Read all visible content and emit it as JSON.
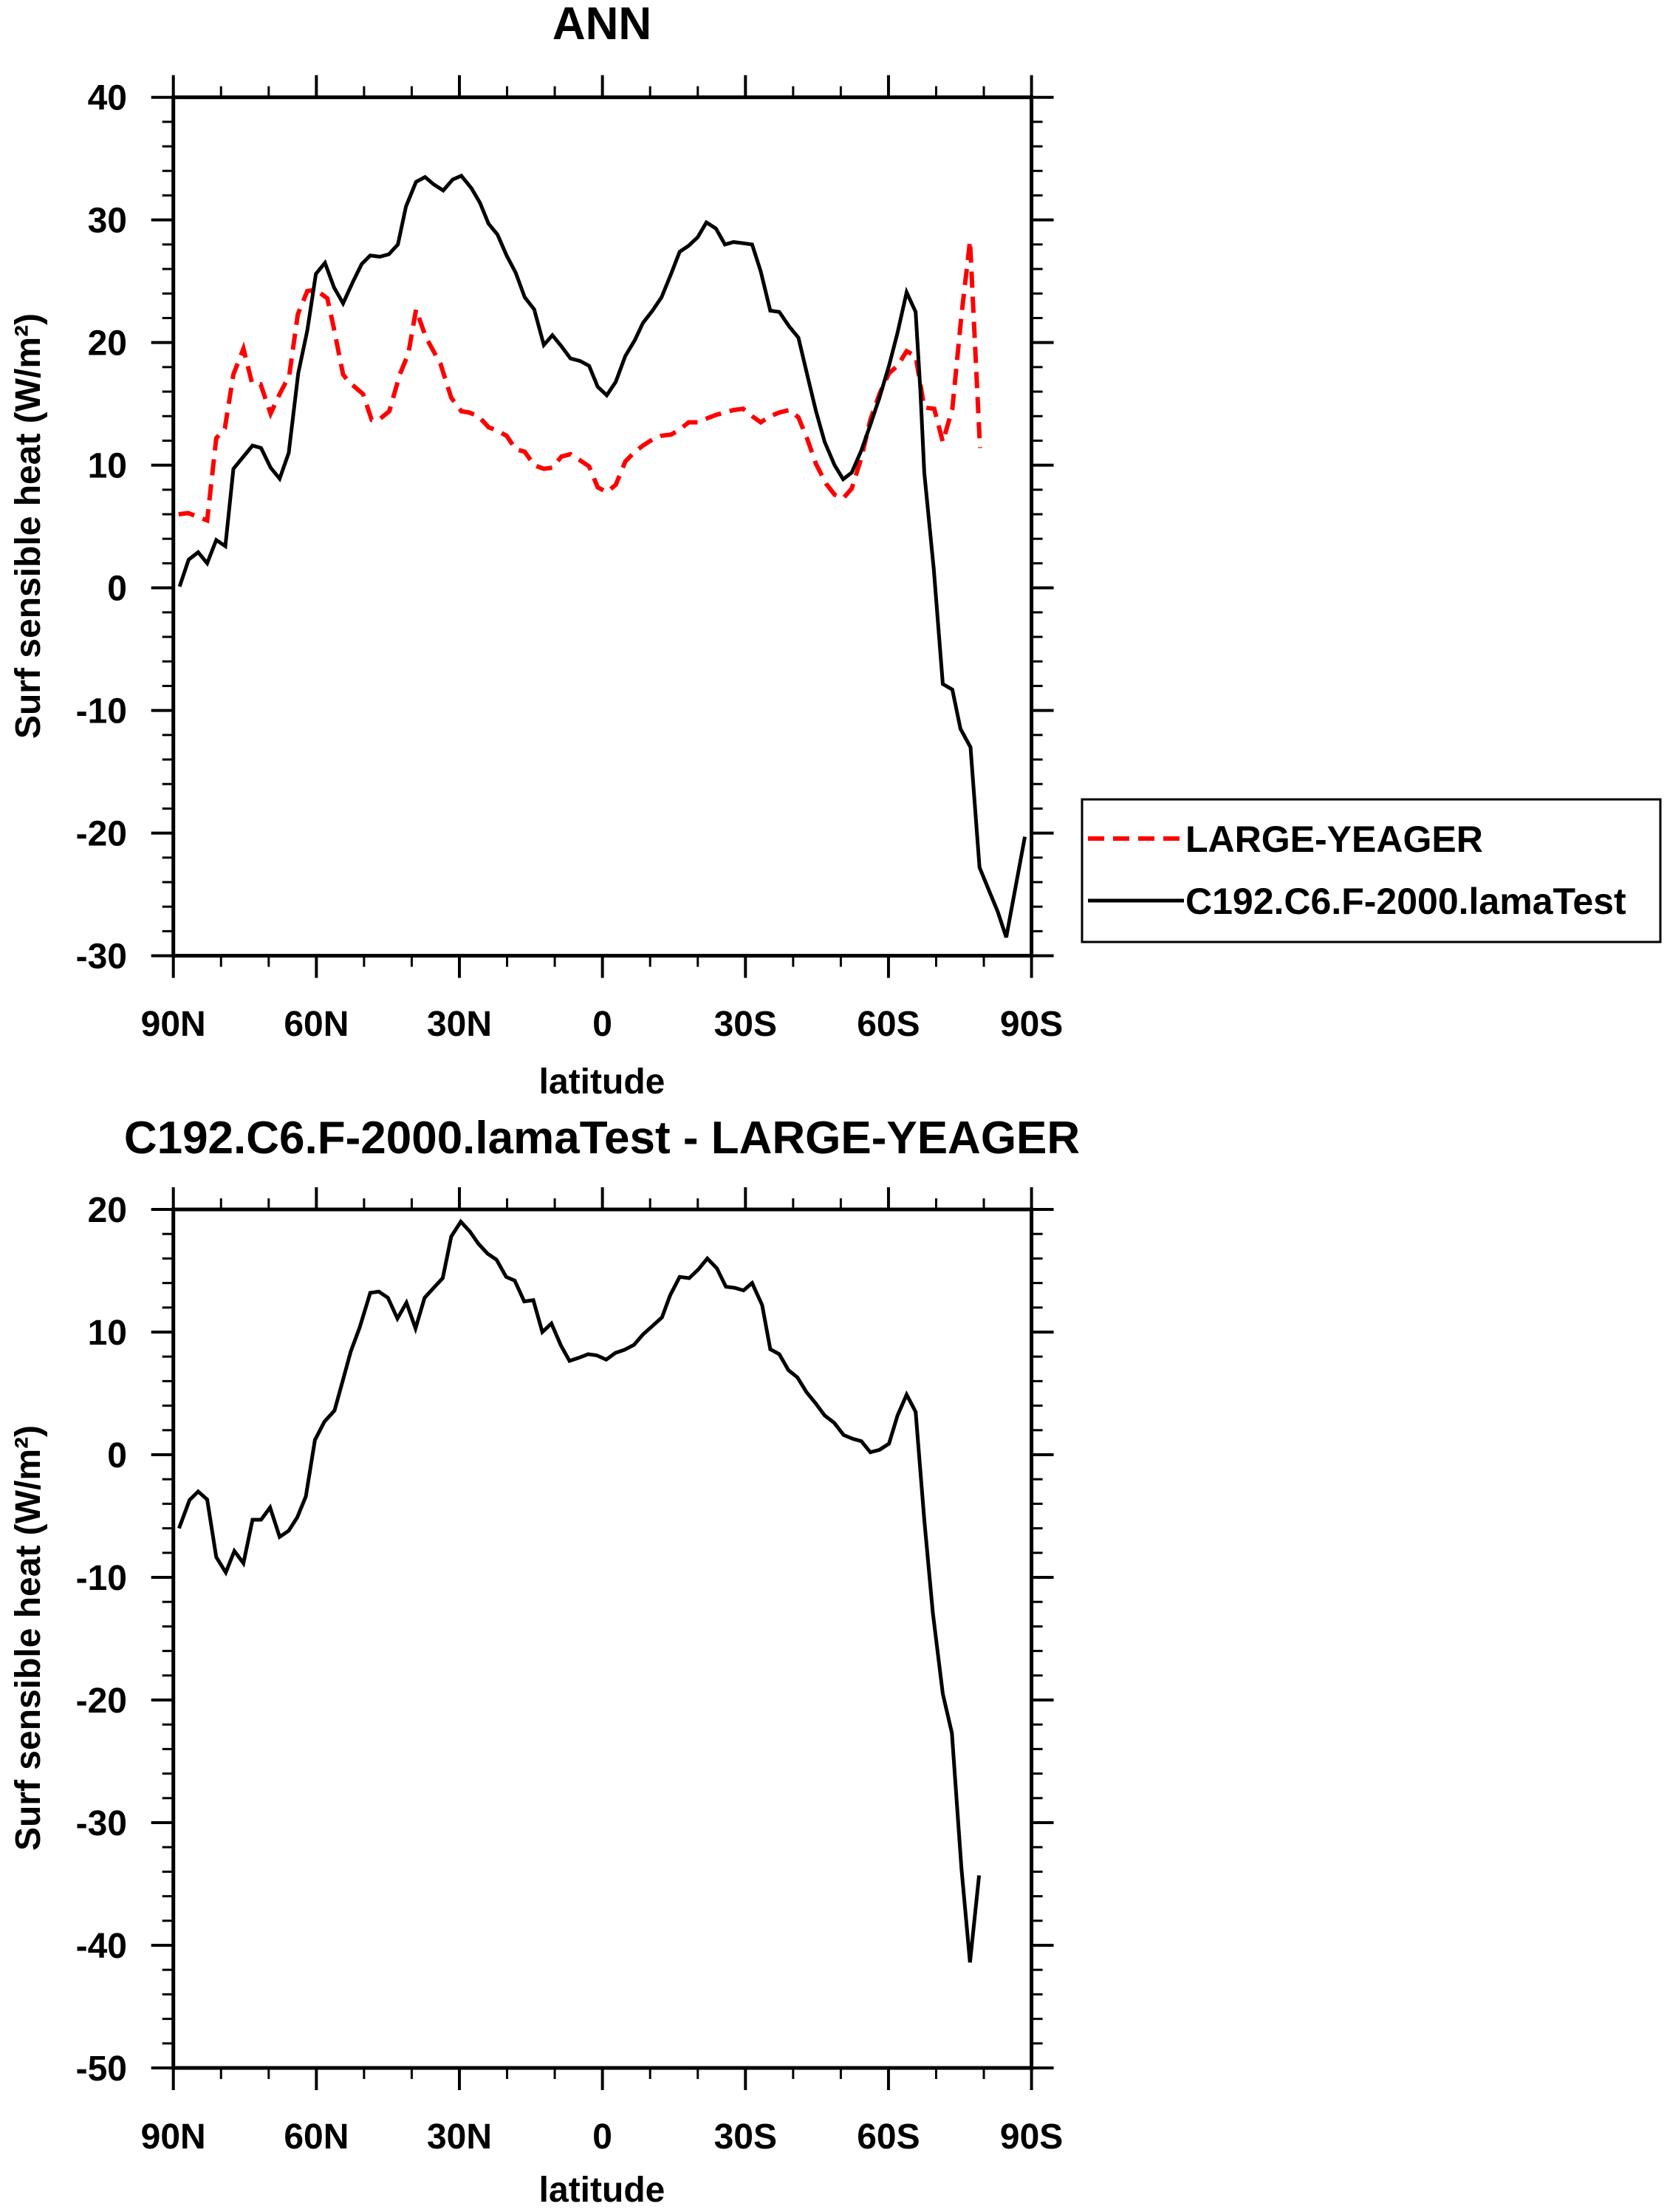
{
  "chart_data": [
    {
      "type": "line",
      "title": "ANN",
      "xlabel": "latitude",
      "ylabel": "Surf sensible heat (W/m²)",
      "xlim": [
        90,
        -90
      ],
      "ylim": [
        -30,
        40
      ],
      "grid": false,
      "xticks": [
        {
          "value": 90,
          "label": "90N"
        },
        {
          "value": 60,
          "label": "60N"
        },
        {
          "value": 30,
          "label": "30N"
        },
        {
          "value": 0,
          "label": "0"
        },
        {
          "value": -30,
          "label": "30S"
        },
        {
          "value": -60,
          "label": "60S"
        },
        {
          "value": -90,
          "label": "90S"
        }
      ],
      "yticks": [
        -30,
        -20,
        -10,
        0,
        10,
        20,
        30,
        40
      ],
      "legend": {
        "position": "right"
      },
      "series": [
        {
          "name": "LARGE-YEAGER",
          "color": "#ff0000",
          "style": "dashed",
          "x": [
            88.9,
            86.9,
            82.9,
            81.0,
            79.2,
            77.4,
            75.3,
            73.5,
            71.7,
            69.6,
            67.7,
            65.7,
            63.9,
            61.9,
            60.1,
            57.7,
            56.4,
            54.4,
            53.2,
            50.2,
            48.4,
            46.9,
            44.7,
            42.5,
            40.7,
            39.1,
            37.1,
            36.0,
            34.0,
            31.7,
            29.6,
            28.0,
            26.0,
            23.9,
            22.0,
            20.1,
            18.2,
            16.3,
            14.3,
            12.3,
            10.5,
            8.6,
            6.7,
            4.7,
            2.8,
            1.0,
            -0.9,
            -2.8,
            -4.8,
            -6.8,
            -8.5,
            -10.5,
            -12.4,
            -14.4,
            -16.2,
            -18.1,
            -20.0,
            -21.8,
            -23.8,
            -25.7,
            -27.5,
            -29.5,
            -31.4,
            -33.2,
            -35.2,
            -37.1,
            -39.2,
            -41.1,
            -43.0,
            -44.8,
            -46.9,
            -48.7,
            -50.5,
            -52.3,
            -54.3,
            -56.2,
            -58.1,
            -60.1,
            -61.9,
            -63.8,
            -65.7,
            -67.5,
            -69.6,
            -71.4,
            -73.4,
            -75.3,
            -77.1,
            -79.2
          ],
          "y": [
            6.0,
            6.1,
            5.5,
            12.2,
            13.0,
            17.4,
            19.5,
            16.7,
            16.6,
            14.2,
            15.8,
            17.3,
            22.3,
            24.2,
            24.3,
            23.6,
            21.3,
            17.4,
            16.8,
            15.8,
            13.7,
            13.7,
            14.4,
            17.4,
            19.1,
            22.7,
            20.5,
            19.7,
            18.3,
            15.5,
            14.4,
            14.3,
            14.0,
            13.1,
            12.8,
            12.4,
            11.3,
            11.1,
            10.0,
            9.7,
            9.8,
            10.7,
            10.9,
            10.4,
            9.9,
            8.2,
            7.8,
            8.4,
            10.3,
            11.1,
            11.6,
            12.1,
            12.4,
            12.5,
            12.9,
            13.5,
            13.5,
            13.8,
            14.1,
            14.3,
            14.5,
            14.6,
            14.0,
            13.5,
            14.0,
            14.3,
            14.5,
            13.9,
            12.1,
            10.1,
            8.5,
            7.6,
            7.3,
            8.1,
            10.6,
            13.7,
            15.8,
            17.5,
            18.1,
            19.3,
            18.9,
            14.7,
            14.6,
            11.9,
            14.6,
            22.2,
            28.3,
            11.4
          ]
        },
        {
          "name": "C192.C6.F-2000.lamaTest",
          "color": "#000000",
          "style": "solid",
          "x": [
            88.7,
            86.8,
            84.8,
            82.9,
            81.0,
            79.1,
            77.4,
            75.3,
            73.4,
            71.6,
            69.6,
            67.7,
            65.8,
            63.8,
            61.9,
            60.1,
            58.2,
            56.3,
            54.4,
            52.4,
            50.5,
            48.7,
            46.7,
            44.8,
            42.9,
            41.2,
            39.1,
            37.2,
            35.4,
            33.4,
            31.4,
            29.6,
            27.5,
            25.7,
            23.9,
            22.0,
            20.1,
            18.2,
            16.3,
            14.3,
            12.3,
            10.5,
            8.6,
            6.7,
            4.7,
            2.8,
            1.0,
            -0.9,
            -2.8,
            -4.8,
            -6.8,
            -8.5,
            -10.5,
            -12.4,
            -14.4,
            -16.2,
            -18.1,
            -20.0,
            -21.8,
            -23.8,
            -25.7,
            -27.5,
            -29.5,
            -31.4,
            -33.2,
            -35.2,
            -37.1,
            -39.2,
            -41.1,
            -43.0,
            -44.8,
            -46.6,
            -48.7,
            -50.5,
            -52.3,
            -54.3,
            -56.2,
            -58.1,
            -60.1,
            -61.9,
            -63.8,
            -65.7,
            -66.7,
            -67.5,
            -69.5,
            -71.4,
            -73.4,
            -75.1,
            -77.2,
            -79.1,
            -81.0,
            -82.9,
            -84.7,
            -86.7,
            -88.6
          ],
          "y": [
            0.1,
            2.3,
            2.9,
            2.0,
            3.9,
            3.4,
            9.7,
            10.7,
            11.6,
            11.4,
            9.8,
            8.9,
            11.0,
            17.5,
            21.0,
            25.6,
            26.5,
            24.5,
            23.2,
            24.9,
            26.4,
            27.1,
            27.0,
            27.2,
            28.0,
            31.1,
            33.1,
            33.5,
            32.9,
            32.4,
            33.3,
            33.6,
            32.6,
            31.4,
            29.7,
            28.8,
            27.1,
            25.7,
            23.7,
            22.7,
            19.8,
            20.6,
            19.7,
            18.7,
            18.5,
            18.1,
            16.4,
            15.7,
            16.8,
            18.9,
            20.2,
            21.6,
            22.6,
            23.7,
            25.6,
            27.4,
            27.9,
            28.6,
            29.8,
            29.3,
            28.0,
            28.2,
            28.1,
            28.0,
            25.8,
            22.6,
            22.5,
            21.3,
            20.4,
            17.3,
            14.4,
            11.9,
            10.0,
            8.85,
            9.4,
            11.2,
            13.3,
            15.5,
            18.1,
            20.8,
            24.1,
            22.5,
            16.0,
            9.4,
            1.5,
            -7.85,
            -8.3,
            -11.5,
            -13.0,
            -22.8,
            -24.6,
            -26.4,
            -28.5,
            -24.3,
            -20.3
          ]
        }
      ]
    },
    {
      "type": "line",
      "title": "C192.C6.F-2000.lamaTest - LARGE-YEAGER",
      "xlabel": "latitude",
      "ylabel": "Surf sensible heat (W/m²)",
      "xlim": [
        90,
        -90
      ],
      "ylim": [
        -50,
        20
      ],
      "grid": false,
      "xticks": [
        {
          "value": 90,
          "label": "90N"
        },
        {
          "value": 60,
          "label": "60N"
        },
        {
          "value": 30,
          "label": "30N"
        },
        {
          "value": 0,
          "label": "0"
        },
        {
          "value": -30,
          "label": "30S"
        },
        {
          "value": -60,
          "label": "60S"
        },
        {
          "value": -90,
          "label": "90S"
        }
      ],
      "yticks": [
        -50,
        -40,
        -30,
        -20,
        -10,
        0,
        10,
        20
      ],
      "series": [
        {
          "color": "#000000",
          "style": "solid",
          "x": [
            88.8,
            86.6,
            84.8,
            82.9,
            81.0,
            79.0,
            77.2,
            75.3,
            73.4,
            71.6,
            69.7,
            67.7,
            65.8,
            64.0,
            62.2,
            60.3,
            58.3,
            56.2,
            54.5,
            52.8,
            50.9,
            48.7,
            46.9,
            45.0,
            43.0,
            41.1,
            39.2,
            37.3,
            35.4,
            33.5,
            31.7,
            29.7,
            27.8,
            26.0,
            24.1,
            22.2,
            20.2,
            18.4,
            16.4,
            14.5,
            12.6,
            10.7,
            8.7,
            6.9,
            5.0,
            3.0,
            1.2,
            -0.8,
            -2.7,
            -4.6,
            -6.6,
            -8.5,
            -10.5,
            -12.5,
            -14.2,
            -16.2,
            -18.2,
            -20.1,
            -22.0,
            -24.0,
            -25.9,
            -27.8,
            -29.6,
            -31.4,
            -33.5,
            -35.2,
            -37.1,
            -39.0,
            -40.9,
            -42.8,
            -44.7,
            -46.6,
            -48.6,
            -50.6,
            -52.5,
            -54.3,
            -56.2,
            -58.1,
            -60.1,
            -61.9,
            -63.8,
            -65.7,
            -67.5,
            -69.3,
            -71.4,
            -73.3,
            -75.3,
            -77.1,
            -79.0
          ],
          "y": [
            -6.0,
            -3.7,
            -3.0,
            -3.65,
            -8.35,
            -9.6,
            -7.85,
            -8.85,
            -5.3,
            -5.3,
            -4.3,
            -6.7,
            -6.2,
            -5.1,
            -3.4,
            1.2,
            2.7,
            3.6,
            6.0,
            8.4,
            10.4,
            13.2,
            13.3,
            12.8,
            11.1,
            12.4,
            10.3,
            12.8,
            13.6,
            14.4,
            17.8,
            19.0,
            18.2,
            17.2,
            16.4,
            15.9,
            14.5,
            14.2,
            12.5,
            12.6,
            10.0,
            10.7,
            8.9,
            7.65,
            7.9,
            8.2,
            8.1,
            7.75,
            8.3,
            8.55,
            8.95,
            9.8,
            10.5,
            11.2,
            13.0,
            14.5,
            14.4,
            15.1,
            16.0,
            15.2,
            13.7,
            13.6,
            13.4,
            14.0,
            12.2,
            8.6,
            8.2,
            6.9,
            6.3,
            5.1,
            4.2,
            3.2,
            2.6,
            1.6,
            1.3,
            1.1,
            0.2,
            0.4,
            0.9,
            3.2,
            4.9,
            3.5,
            -5.3,
            -12.9,
            -19.5,
            -22.7,
            -33.7,
            -41.4,
            -34.3
          ]
        }
      ]
    }
  ]
}
